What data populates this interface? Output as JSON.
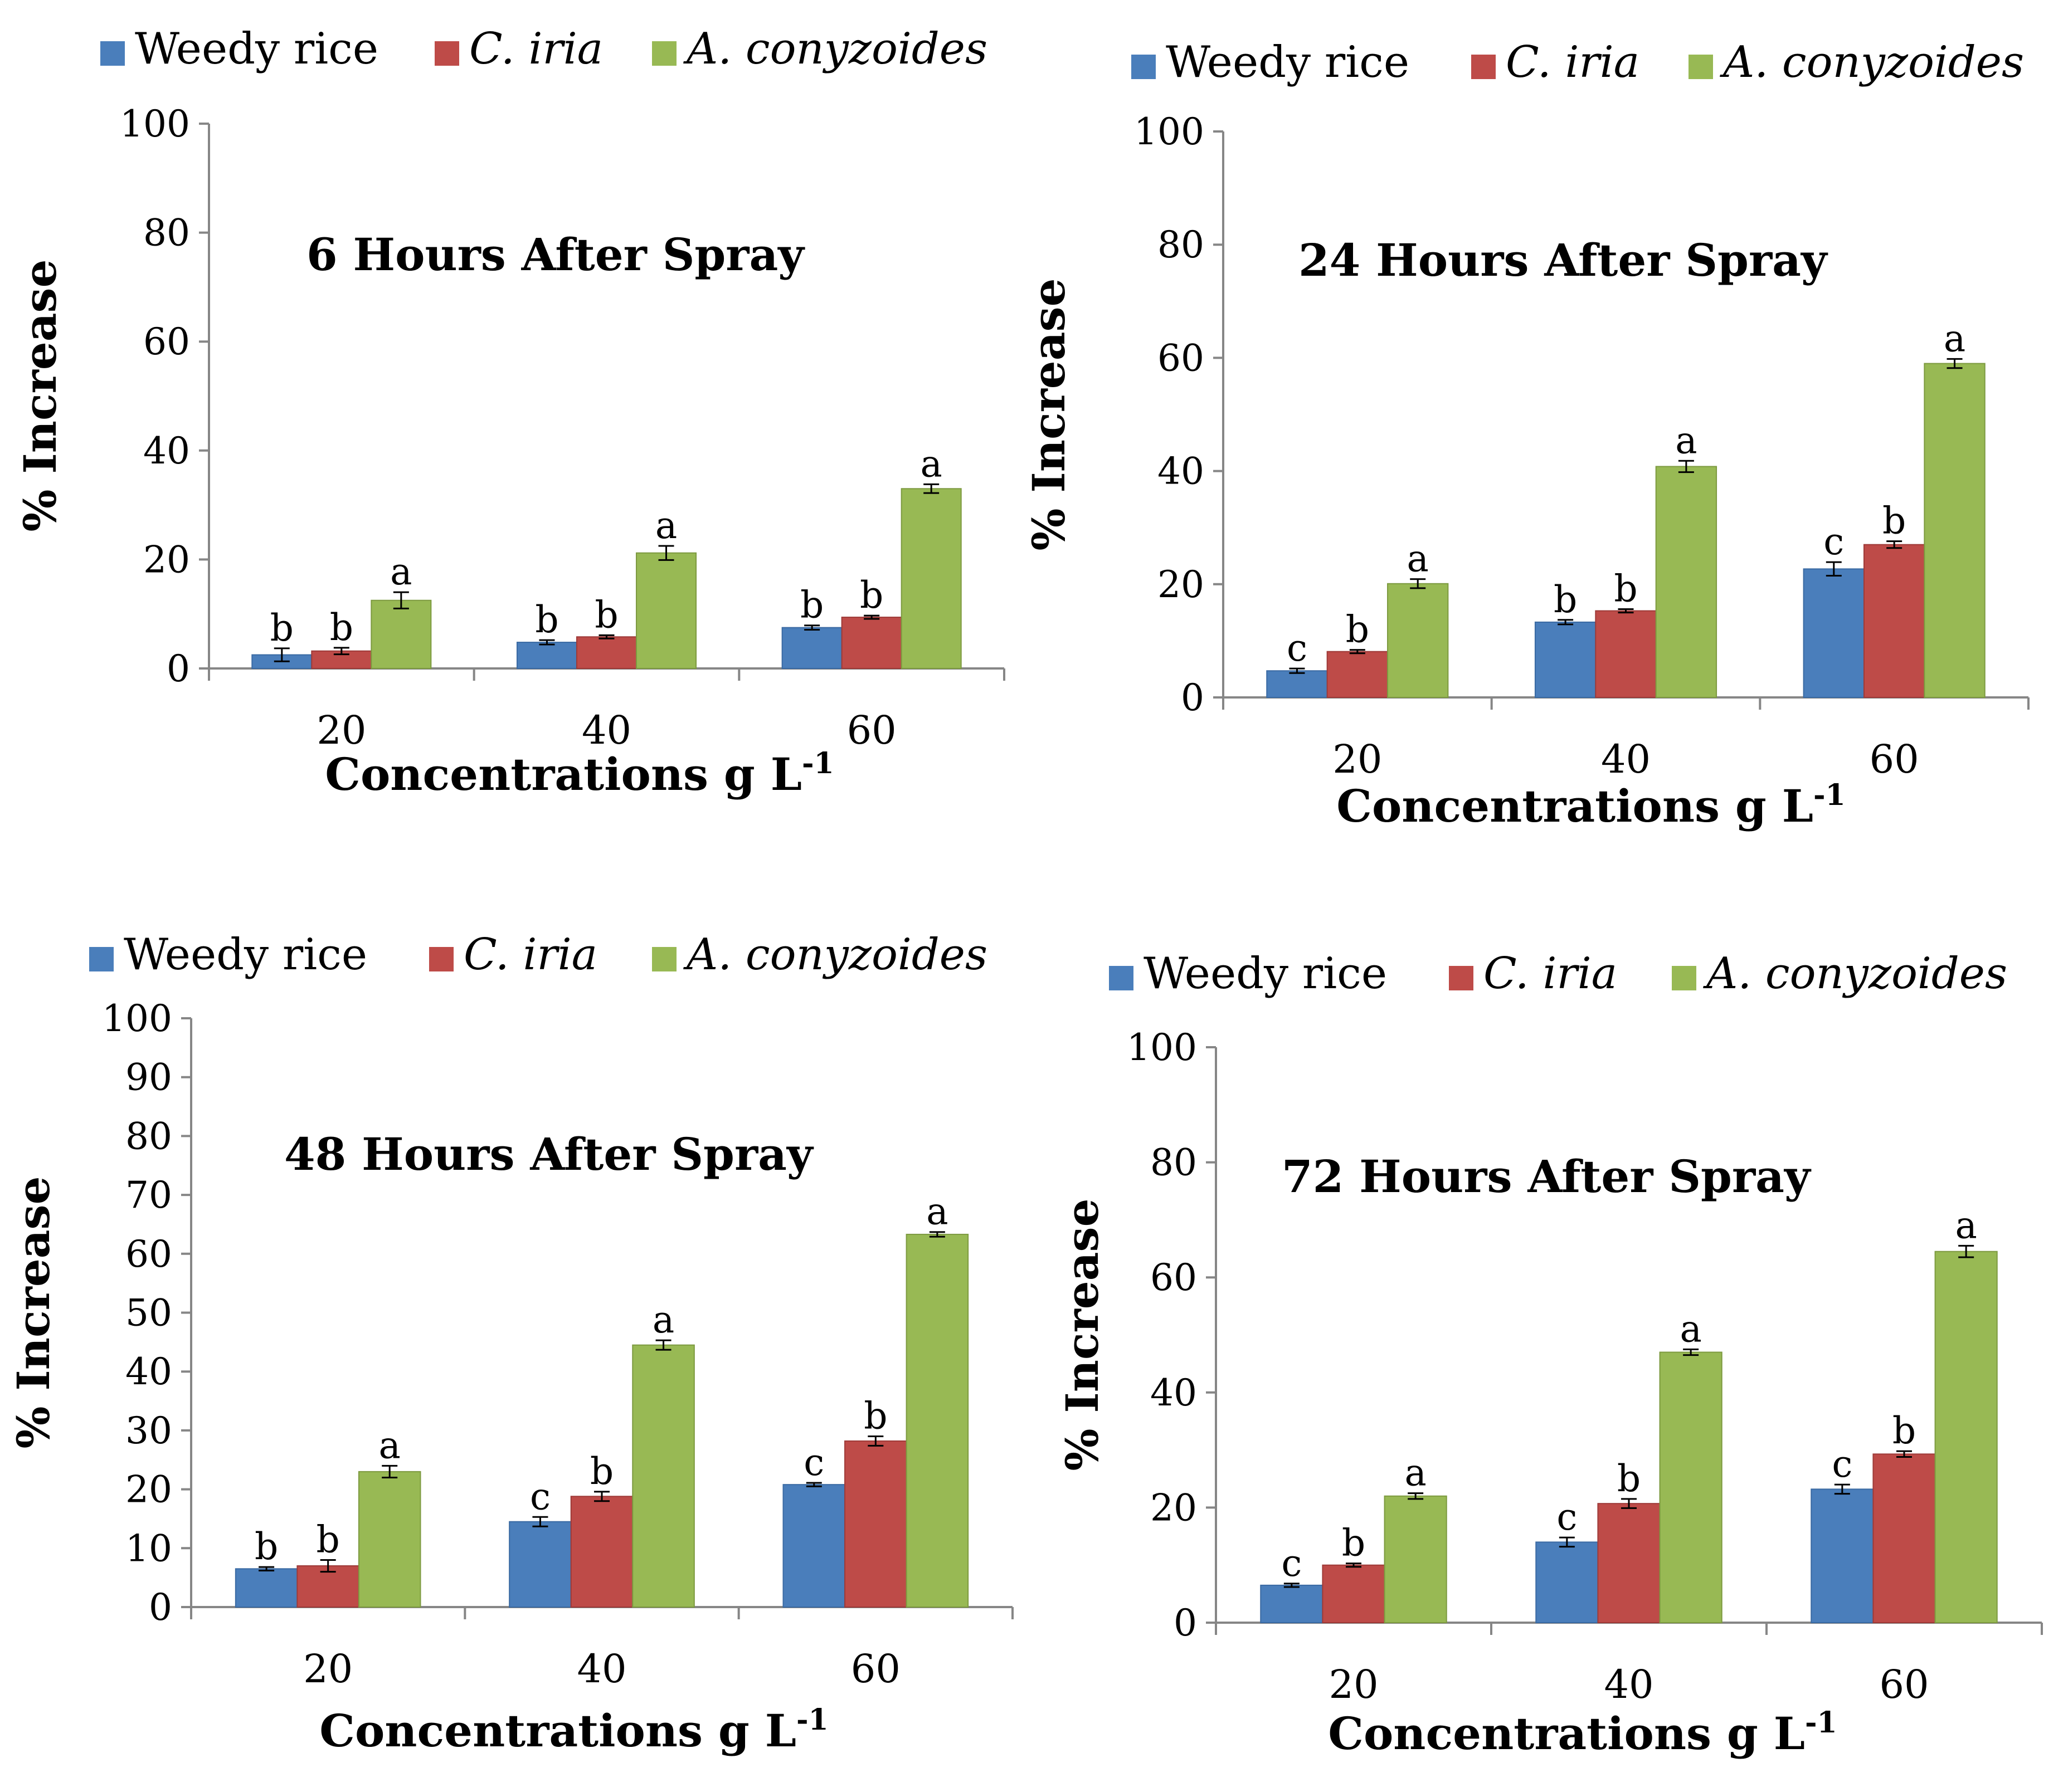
{
  "chart_data": [
    {
      "type": "bar",
      "title": "6 Hours After Spray",
      "xlabel": "Concentrations g L",
      "xlabel_sup": "-1",
      "ylabel": "% Increase",
      "categories": [
        "20",
        "40",
        "60"
      ],
      "ylim": [
        0,
        100
      ],
      "yticks": [
        "0",
        "20",
        "40",
        "60",
        "80",
        "100"
      ],
      "series": [
        {
          "name": "Weedy rice",
          "values": [
            2.5,
            4.8,
            7.5
          ],
          "errors": [
            1.2,
            0.4,
            0.4
          ],
          "letters": [
            "b",
            "b",
            "b"
          ]
        },
        {
          "name": "C. iria",
          "values": [
            3.2,
            5.8,
            9.4
          ],
          "errors": [
            0.6,
            0.3,
            0.3
          ],
          "letters": [
            "b",
            "b",
            "b"
          ]
        },
        {
          "name": "A. conyzoides",
          "values": [
            12.5,
            21.2,
            33.0
          ],
          "errors": [
            1.5,
            1.3,
            0.8
          ],
          "letters": [
            "a",
            "a",
            "a"
          ]
        }
      ]
    },
    {
      "type": "bar",
      "title": "24 Hours After Spray",
      "xlabel": "Concentrations g L",
      "xlabel_sup": "-1",
      "ylabel": "% Increase",
      "categories": [
        "20",
        "40",
        "60"
      ],
      "ylim": [
        0,
        100
      ],
      "yticks": [
        "0",
        "20",
        "40",
        "60",
        "80",
        "100"
      ],
      "series": [
        {
          "name": "Weedy rice",
          "values": [
            4.7,
            13.3,
            22.7
          ],
          "errors": [
            0.4,
            0.4,
            1.2
          ],
          "letters": [
            "c",
            "b",
            "c"
          ]
        },
        {
          "name": "C. iria",
          "values": [
            8.1,
            15.3,
            27.0
          ],
          "errors": [
            0.3,
            0.3,
            0.6
          ],
          "letters": [
            "b",
            "b",
            "b"
          ]
        },
        {
          "name": "A. conyzoides",
          "values": [
            20.1,
            40.8,
            59.0
          ],
          "errors": [
            0.8,
            1.0,
            0.8
          ],
          "letters": [
            "a",
            "a",
            "a"
          ]
        }
      ]
    },
    {
      "type": "bar",
      "title": "48 Hours After Spray",
      "xlabel": "Concentrations g L",
      "xlabel_sup": "-1",
      "ylabel": "% Increase",
      "categories": [
        "20",
        "40",
        "60"
      ],
      "ylim": [
        0,
        100
      ],
      "yticks": [
        "0",
        "10",
        "20",
        "30",
        "40",
        "50",
        "60",
        "70",
        "80",
        "90",
        "100"
      ],
      "series": [
        {
          "name": "Weedy rice",
          "values": [
            6.5,
            14.5,
            20.8
          ],
          "errors": [
            0.3,
            0.8,
            0.3
          ],
          "letters": [
            "b",
            "c",
            "c"
          ]
        },
        {
          "name": "C. iria",
          "values": [
            7.0,
            18.8,
            28.2
          ],
          "errors": [
            1.0,
            0.8,
            0.8
          ],
          "letters": [
            "b",
            "b",
            "b"
          ]
        },
        {
          "name": "A. conyzoides",
          "values": [
            23.0,
            44.5,
            63.3
          ],
          "errors": [
            1.0,
            0.8,
            0.4
          ],
          "letters": [
            "a",
            "a",
            "a"
          ]
        }
      ]
    },
    {
      "type": "bar",
      "title": "72 Hours After Spray",
      "xlabel": "Concentrations g L",
      "xlabel_sup": "-1",
      "ylabel": "% Increase",
      "categories": [
        "20",
        "40",
        "60"
      ],
      "ylim": [
        0,
        100
      ],
      "yticks": [
        "0",
        "20",
        "40",
        "60",
        "80",
        "100"
      ],
      "series": [
        {
          "name": "Weedy rice",
          "values": [
            6.5,
            14.0,
            23.2
          ],
          "errors": [
            0.3,
            0.8,
            0.8
          ],
          "letters": [
            "c",
            "c",
            "c"
          ]
        },
        {
          "name": "C. iria",
          "values": [
            10.0,
            20.7,
            29.3
          ],
          "errors": [
            0.3,
            0.8,
            0.5
          ],
          "letters": [
            "b",
            "b",
            "b"
          ]
        },
        {
          "name": "A. conyzoides",
          "values": [
            22.0,
            47.0,
            64.5
          ],
          "errors": [
            0.5,
            0.5,
            1.0
          ],
          "letters": [
            "a",
            "a",
            "a"
          ]
        }
      ]
    }
  ],
  "legend": [
    {
      "label": "Weedy rice",
      "italic": false
    },
    {
      "label": "C. iria",
      "italic": true
    },
    {
      "label": "A. conyzoides",
      "italic": true
    }
  ],
  "colors": {
    "series": [
      "#4a7ebb",
      "#be4b48",
      "#98b954"
    ],
    "series_dark": [
      "#3a6aa3",
      "#9e3a38",
      "#7d9a40"
    ],
    "axis": "#868686",
    "error_bar": "#000000"
  }
}
